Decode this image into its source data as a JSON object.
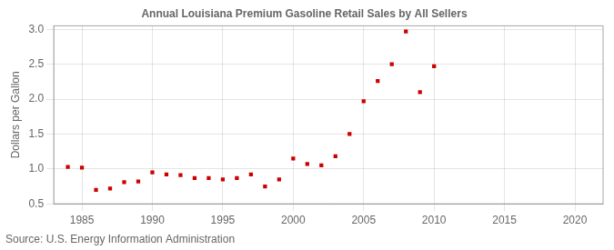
{
  "chart_data": {
    "type": "scatter",
    "title": "Annual Louisiana Premium Gasoline Retail Sales by All Sellers",
    "ylabel": "Dollars per Gallon",
    "annotations": [
      "Source: U.S. Energy Information Administration"
    ],
    "x": [
      1984,
      1985,
      1986,
      1987,
      1988,
      1989,
      1990,
      1991,
      1992,
      1993,
      1994,
      1995,
      1996,
      1997,
      1998,
      1999,
      2000,
      2001,
      2002,
      2003,
      2004,
      2005,
      2006,
      2007,
      2008,
      2009,
      2010
    ],
    "values": [
      1.03,
      1.02,
      0.7,
      0.72,
      0.81,
      0.82,
      0.95,
      0.92,
      0.91,
      0.87,
      0.87,
      0.85,
      0.87,
      0.92,
      0.75,
      0.85,
      1.15,
      1.07,
      1.05,
      1.18,
      1.5,
      1.97,
      2.26,
      2.5,
      2.97,
      2.1,
      2.47
    ],
    "color": "#cc0000",
    "marker": "square",
    "xlim": [
      1983,
      2022
    ],
    "ylim": [
      0.5,
      3.05
    ],
    "xticks": [
      1985,
      1990,
      1995,
      2000,
      2005,
      2010,
      2015,
      2020
    ],
    "yticks": [
      0.5,
      {
        "value": 1.0,
        "label": "1.0"
      },
      1.5,
      {
        "value": 2.0,
        "label": "2.0"
      },
      2.5,
      {
        "value": 3.0,
        "label": "3.0"
      }
    ],
    "grid": true
  }
}
